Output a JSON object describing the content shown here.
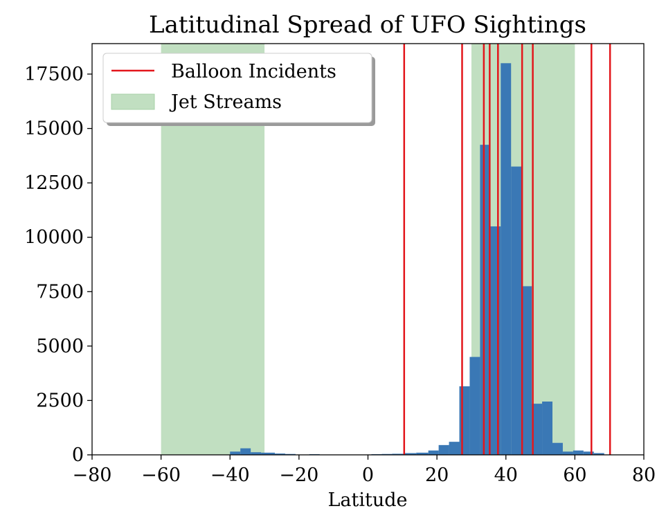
{
  "chart_data": {
    "type": "histogram",
    "title": "Latitudinal Spread of UFO Sightings",
    "xlabel": "Latitude",
    "ylabel": "",
    "xlim": [
      -80,
      80
    ],
    "ylim": [
      0,
      18900
    ],
    "x_ticks": [
      -80,
      -60,
      -40,
      -20,
      0,
      20,
      40,
      60,
      80
    ],
    "x_tick_labels": [
      "−80",
      "−60",
      "−40",
      "−20",
      "0",
      "20",
      "40",
      "60",
      "80"
    ],
    "y_ticks": [
      0,
      2500,
      5000,
      7500,
      10000,
      12500,
      15000,
      17500
    ],
    "y_tick_labels": [
      "0",
      "2500",
      "5000",
      "7500",
      "10000",
      "12500",
      "15000",
      "17500"
    ],
    "bins": [
      {
        "x0": -40.0,
        "x1": -37.0,
        "count": 150
      },
      {
        "x0": -37.0,
        "x1": -34.0,
        "count": 300
      },
      {
        "x0": -34.0,
        "x1": -31.0,
        "count": 120
      },
      {
        "x0": -31.0,
        "x1": -27.0,
        "count": 100
      },
      {
        "x0": -27.0,
        "x1": -24.0,
        "count": 60
      },
      {
        "x0": -24.0,
        "x1": -21.0,
        "count": 40
      },
      {
        "x0": -17.0,
        "x1": -14.0,
        "count": 30
      },
      {
        "x0": 1.0,
        "x1": 4.0,
        "count": 30
      },
      {
        "x0": 4.0,
        "x1": 7.0,
        "count": 40
      },
      {
        "x0": 7.0,
        "x1": 10.5,
        "count": 50
      },
      {
        "x0": 10.5,
        "x1": 14.0,
        "count": 80
      },
      {
        "x0": 14.0,
        "x1": 17.5,
        "count": 100
      },
      {
        "x0": 17.5,
        "x1": 20.5,
        "count": 200
      },
      {
        "x0": 20.5,
        "x1": 23.5,
        "count": 450
      },
      {
        "x0": 23.5,
        "x1": 26.5,
        "count": 600
      },
      {
        "x0": 26.5,
        "x1": 29.5,
        "count": 3150
      },
      {
        "x0": 29.5,
        "x1": 32.5,
        "count": 4500
      },
      {
        "x0": 32.5,
        "x1": 35.5,
        "count": 14250
      },
      {
        "x0": 35.5,
        "x1": 38.5,
        "count": 10500
      },
      {
        "x0": 38.5,
        "x1": 41.5,
        "count": 18000
      },
      {
        "x0": 41.5,
        "x1": 44.5,
        "count": 13250
      },
      {
        "x0": 44.5,
        "x1": 47.5,
        "count": 7750
      },
      {
        "x0": 47.5,
        "x1": 50.5,
        "count": 2350
      },
      {
        "x0": 50.5,
        "x1": 53.5,
        "count": 2450
      },
      {
        "x0": 53.5,
        "x1": 56.5,
        "count": 550
      },
      {
        "x0": 56.5,
        "x1": 59.5,
        "count": 150
      },
      {
        "x0": 59.5,
        "x1": 62.5,
        "count": 200
      },
      {
        "x0": 62.5,
        "x1": 65.5,
        "count": 150
      },
      {
        "x0": 65.5,
        "x1": 68.5,
        "count": 80
      }
    ],
    "bar_color": "#3a78b5",
    "jet_streams": [
      {
        "x0": -60,
        "x1": -30
      },
      {
        "x0": 30,
        "x1": 60
      }
    ],
    "jet_stream_color": "#c1dfc1",
    "balloon_incidents": [
      10.5,
      27.3,
      33.6,
      35.3,
      37.7,
      44.7,
      47.8,
      64.8,
      70.2
    ],
    "balloon_color": "#e3161b",
    "legend": {
      "location": "upper-left",
      "entries": [
        {
          "label": "Balloon Incidents",
          "kind": "line"
        },
        {
          "label": "Jet Streams",
          "kind": "patch"
        }
      ]
    }
  }
}
